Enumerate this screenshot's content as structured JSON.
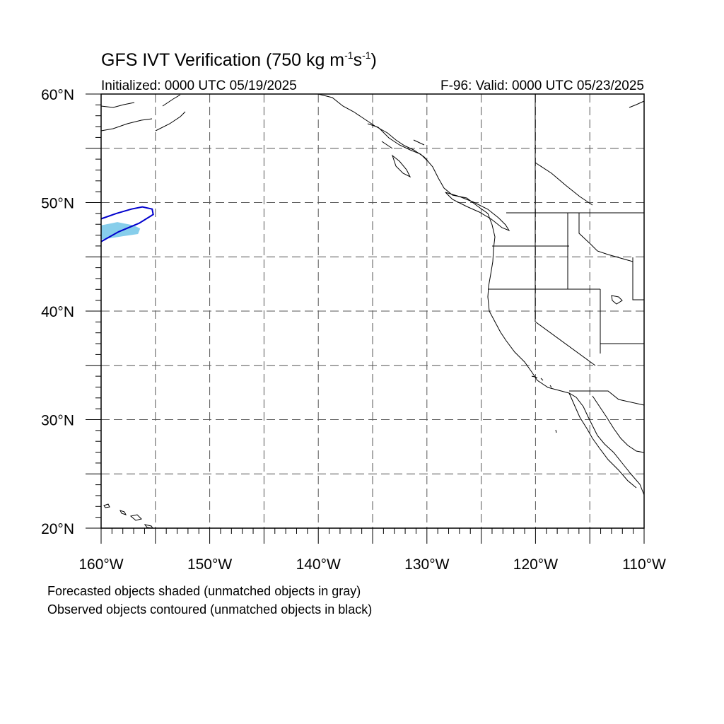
{
  "title": {
    "main": "GFS IVT Verification (750 kg m",
    "sup1": "-1",
    "mid": "s",
    "sup2": "-1",
    "end": ")"
  },
  "init_label": "Initialized: 0000 UTC 05/19/2025",
  "valid_label": "F-96: Valid: 0000 UTC 05/23/2025",
  "notes": [
    "Forecasted objects shaded (unmatched objects in gray)",
    "Observed objects contoured (unmatched objects in black)"
  ],
  "map": {
    "lon_range": [
      -160,
      -110
    ],
    "lat_range": [
      20,
      60
    ],
    "grid_lons": [
      -155,
      -150,
      -145,
      -140,
      -135,
      -130,
      -125,
      -120,
      -115
    ],
    "grid_lats": [
      25,
      30,
      35,
      40,
      45,
      50,
      55
    ],
    "lat_labels": [
      "60°N",
      "50°N",
      "40°N",
      "30°N",
      "20°N"
    ],
    "lat_label_values": [
      60,
      50,
      40,
      30,
      20
    ],
    "lon_labels": [
      "160°W",
      "150°W",
      "140°W",
      "130°W",
      "120°W",
      "110°W"
    ],
    "lon_label_values": [
      -160,
      -150,
      -140,
      -130,
      -120,
      -110
    ],
    "colors": {
      "forecast_fill": "#87ceeb",
      "observed_contour": "#0000cd",
      "coastline": "#000000",
      "grid": "#555555"
    },
    "forecast_object": [
      [
        -160,
        47.9
      ],
      [
        -158.5,
        48.2
      ],
      [
        -157,
        47.9
      ],
      [
        -156.4,
        47.6
      ],
      [
        -156.6,
        47.1
      ],
      [
        -158,
        46.9
      ],
      [
        -159.3,
        46.7
      ],
      [
        -160,
        46.6
      ]
    ],
    "observed_object": [
      [
        -160,
        48.5
      ],
      [
        -158.6,
        49.0
      ],
      [
        -157.2,
        49.4
      ],
      [
        -156.2,
        49.6
      ],
      [
        -155.3,
        49.4
      ],
      [
        -155.2,
        48.9
      ],
      [
        -156.5,
        48.1
      ],
      [
        -158.4,
        47.3
      ],
      [
        -160,
        46.4
      ]
    ]
  }
}
